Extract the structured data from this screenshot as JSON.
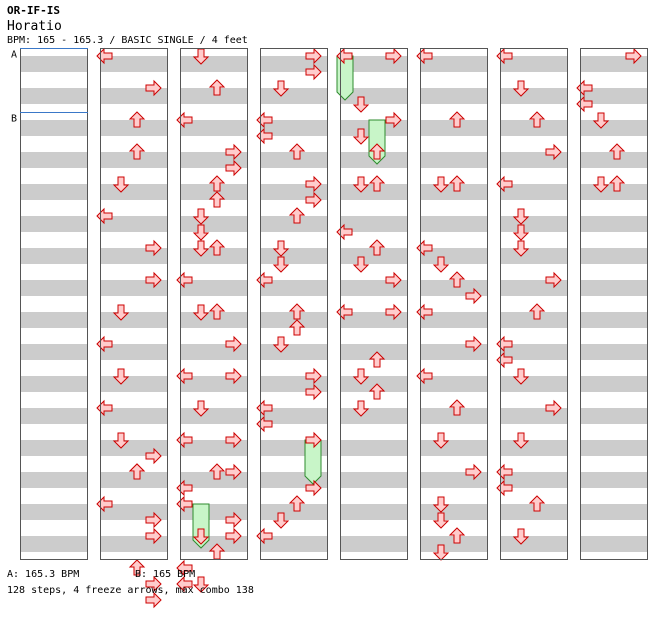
{
  "header": {
    "title": "OR-IF-IS",
    "artist": "Horatio",
    "info": "BPM: 165 - 165.3 / BASIC SINGLE / 4 feet"
  },
  "footer": {
    "bpm_a": "A: 165.3 BPM",
    "bpm_b": "B: 165 BPM",
    "stats": "128 steps, 4 freeze arrows, max combo 138"
  },
  "markers": [
    {
      "label": "A",
      "row": 0
    },
    {
      "label": "B",
      "row": 2
    }
  ],
  "colors": {
    "stripe": "#cccccc",
    "arrow_fill": "#ffcccc",
    "arrow_stroke": "#cc0000",
    "freeze_fill": "#c8f5c8",
    "freeze_stroke": "#2e8b2e",
    "marker_line": "#3a78c8"
  },
  "columns": [
    [],
    [
      [
        "L",
        0
      ],
      [
        "R",
        1
      ],
      [
        "U",
        2
      ],
      [
        "U",
        3
      ],
      [
        "D",
        4
      ],
      [
        "L",
        5
      ],
      [
        "R",
        6
      ],
      [
        "R",
        7
      ],
      [
        "D",
        8
      ],
      [
        "L",
        9
      ],
      [
        "D",
        10
      ],
      [
        "L",
        11
      ],
      [
        "D",
        12
      ],
      [
        "R",
        12.5
      ],
      [
        "U",
        13
      ],
      [
        "L",
        14
      ],
      [
        "R",
        14.5
      ],
      [
        "R",
        15
      ],
      [
        "U",
        16
      ],
      [
        "R",
        16.5
      ],
      [
        "R",
        17
      ],
      [
        "U",
        13
      ]
    ],
    [
      [
        "D",
        0
      ],
      [
        "U",
        1
      ],
      [
        "L",
        2
      ],
      [
        "R",
        3
      ],
      [
        "R",
        3.5
      ],
      [
        "U",
        4
      ],
      [
        "U",
        4.5
      ],
      [
        "D",
        5
      ],
      [
        "D",
        5.5
      ],
      [
        "D",
        6
      ],
      [
        "U",
        6
      ],
      [
        "L",
        7
      ],
      [
        "D",
        8
      ],
      [
        "U",
        8
      ],
      [
        "R",
        9
      ],
      [
        "L",
        10
      ],
      [
        "R",
        10
      ],
      [
        "D",
        11
      ],
      [
        "L",
        12
      ],
      [
        "R",
        12
      ],
      [
        "U",
        13
      ],
      [
        "R",
        13
      ],
      [
        "L",
        13.5
      ],
      [
        "L",
        14
      ],
      [
        "R",
        14.5
      ],
      [
        "D",
        15
      ],
      [
        "R",
        15
      ],
      [
        "U",
        15.5
      ],
      [
        "L",
        16
      ],
      [
        "L",
        16.5
      ],
      [
        "D",
        16.5
      ]
    ],
    [
      [
        "R",
        0
      ],
      [
        "R",
        0.5
      ],
      [
        "D",
        1
      ],
      [
        "L",
        2
      ],
      [
        "L",
        2.5
      ],
      [
        "U",
        3
      ],
      [
        "R",
        4
      ],
      [
        "R",
        4.5
      ],
      [
        "U",
        5
      ],
      [
        "D",
        6
      ],
      [
        "D",
        6.5
      ],
      [
        "L",
        7
      ],
      [
        "U",
        8
      ],
      [
        "U",
        8.5
      ],
      [
        "D",
        9
      ],
      [
        "R",
        10
      ],
      [
        "R",
        10.5
      ],
      [
        "L",
        11
      ],
      [
        "L",
        11.5
      ],
      [
        "R",
        12
      ],
      [
        "R",
        13.5
      ],
      [
        "U",
        14
      ],
      [
        "D",
        14.5
      ],
      [
        "L",
        15
      ]
    ],
    [
      [
        "L",
        0
      ],
      [
        "R",
        0
      ],
      [
        "D",
        1.5
      ],
      [
        "R",
        2
      ],
      [
        "D",
        2.5
      ],
      [
        "U",
        3
      ],
      [
        "D",
        4
      ],
      [
        "U",
        4
      ],
      [
        "L",
        5.5
      ],
      [
        "U",
        6
      ],
      [
        "D",
        6.5
      ],
      [
        "R",
        7
      ],
      [
        "L",
        8
      ],
      [
        "R",
        8
      ],
      [
        "U",
        9.5
      ],
      [
        "D",
        10
      ],
      [
        "U",
        10.5
      ],
      [
        "D",
        11
      ]
    ],
    [
      [
        "L",
        0
      ],
      [
        "U",
        2
      ],
      [
        "D",
        4
      ],
      [
        "U",
        4
      ],
      [
        "L",
        6
      ],
      [
        "D",
        6.5
      ],
      [
        "U",
        7
      ],
      [
        "R",
        7.5
      ],
      [
        "L",
        8
      ],
      [
        "R",
        9
      ],
      [
        "L",
        10
      ],
      [
        "U",
        11
      ],
      [
        "D",
        12
      ],
      [
        "R",
        13
      ],
      [
        "D",
        14
      ],
      [
        "D",
        14.5
      ],
      [
        "U",
        15
      ],
      [
        "D",
        15.5
      ]
    ],
    [
      [
        "L",
        0
      ],
      [
        "D",
        1
      ],
      [
        "U",
        2
      ],
      [
        "R",
        3
      ],
      [
        "L",
        4
      ],
      [
        "D",
        5
      ],
      [
        "D",
        5.5
      ],
      [
        "D",
        6
      ],
      [
        "R",
        7
      ],
      [
        "U",
        8
      ],
      [
        "L",
        9
      ],
      [
        "L",
        9.5
      ],
      [
        "D",
        10
      ],
      [
        "R",
        11
      ],
      [
        "D",
        12
      ],
      [
        "L",
        13
      ],
      [
        "L",
        13.5
      ],
      [
        "U",
        14
      ],
      [
        "D",
        15
      ]
    ],
    [
      [
        "R",
        0
      ],
      [
        "L",
        1
      ],
      [
        "L",
        1.5
      ],
      [
        "D",
        2
      ],
      [
        "U",
        3
      ],
      [
        "D",
        4
      ],
      [
        "U",
        4
      ]
    ]
  ],
  "freezes": [
    {
      "dir": "L",
      "column": 4,
      "start": 0,
      "end": 1
    },
    {
      "dir": "U",
      "column": 4,
      "start": 2,
      "end": 3
    },
    {
      "dir": "R",
      "column": 3,
      "start": 12,
      "end": 13
    },
    {
      "dir": "D",
      "column": 2,
      "start": 14,
      "end": 15
    }
  ]
}
